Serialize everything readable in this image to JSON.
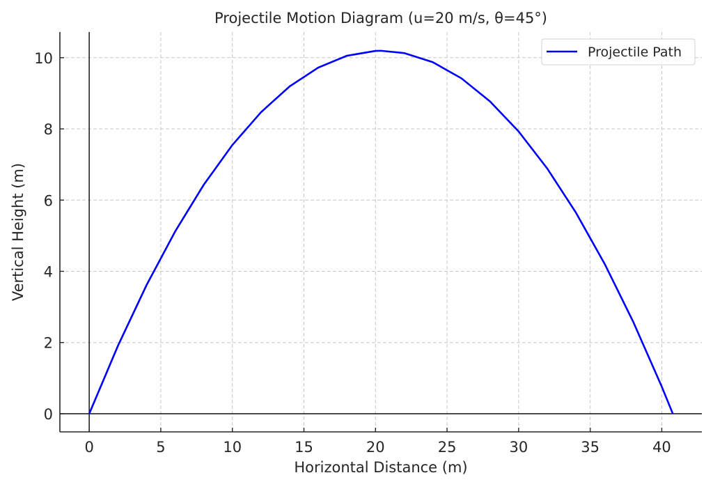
{
  "chart_data": {
    "type": "line",
    "title": "Projectile Motion Diagram (u=20 m/s, θ=45°)",
    "xlabel": "Horizontal Distance (m)",
    "ylabel": "Vertical Height (m)",
    "xlim": [
      -2.05,
      42.8
    ],
    "ylim": [
      -0.51,
      10.72
    ],
    "xticks": [
      0,
      5,
      10,
      15,
      20,
      25,
      30,
      35,
      40
    ],
    "yticks": [
      0,
      2,
      4,
      6,
      8,
      10
    ],
    "grid": true,
    "legend": {
      "position": "top-right",
      "entries": [
        "Projectile Path"
      ]
    },
    "series": [
      {
        "name": "Projectile Path",
        "color": "#0000ff",
        "x": [
          0,
          2,
          4,
          6,
          8,
          10,
          12,
          14,
          16,
          18,
          20,
          20.39,
          22,
          24,
          26,
          28,
          30,
          32,
          34,
          36,
          38,
          40,
          40.77
        ],
        "y": [
          0,
          1.902,
          3.608,
          5.117,
          6.43,
          7.548,
          8.468,
          9.193,
          9.722,
          10.054,
          10.19,
          10.194,
          10.13,
          9.874,
          9.421,
          8.772,
          7.928,
          6.886,
          5.649,
          4.216,
          2.586,
          0.76,
          0
        ]
      }
    ]
  }
}
